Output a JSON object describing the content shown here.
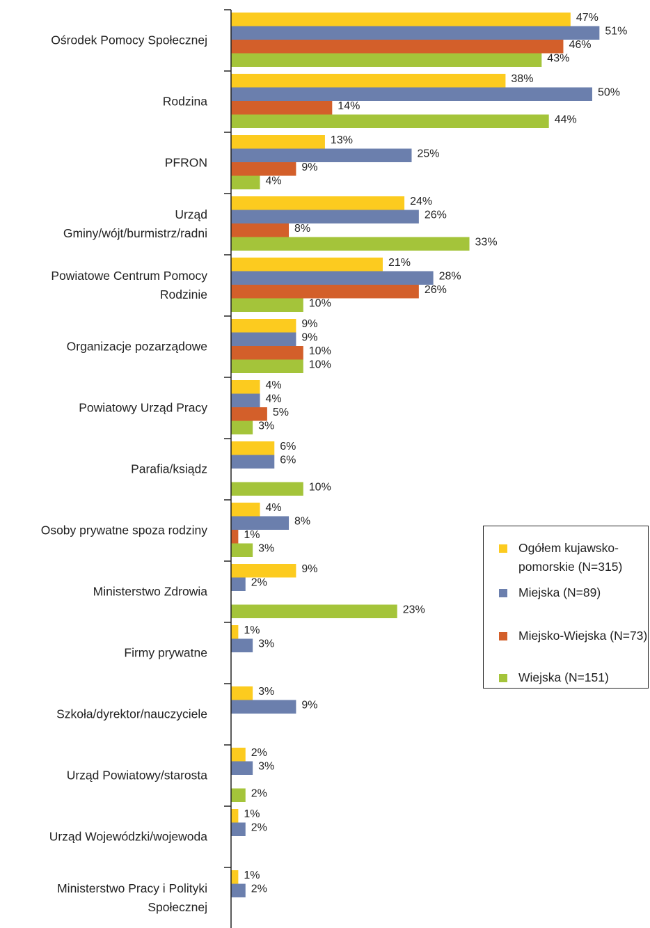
{
  "chart_data": {
    "type": "bar",
    "orientation": "horizontal",
    "categories": [
      "Ośrodek Pomocy Społecznej",
      "Rodzina",
      "PFRON",
      "Urząd\nGminy/wójt/burmistrz/radni",
      "Powiatowe Centrum Pomocy\nRodzinie",
      "Organizacje pozarządowe",
      "Powiatowy Urząd Pracy",
      "Parafia/ksiądz",
      "Osoby prywatne spoza rodziny",
      "Ministerstwo Zdrowia",
      "Firmy prywatne",
      "Szkoła/dyrektor/nauczyciele",
      "Urząd Powiatowy/starosta",
      "Urząd Wojewódzki/wojewoda",
      "Ministerstwo Pracy i Polityki\nSpołecznej"
    ],
    "xlim": [
      0,
      58
    ],
    "legend": "right",
    "series": [
      {
        "name": "Ogółem kujawsko-pomorskie (N=315)",
        "color": "#fccb1f",
        "values": [
          47,
          38,
          13,
          24,
          21,
          9,
          4,
          6,
          4,
          9,
          1,
          3,
          2,
          1,
          1
        ],
        "value_labels": [
          "47%",
          "38%",
          "13%",
          "24%",
          "21%",
          "9%",
          "4%",
          "6%",
          "4%",
          "9%",
          "1%",
          "3%",
          "2%",
          "1%",
          "1%"
        ]
      },
      {
        "name": "Miejska (N=89)",
        "color": "#6b7fad",
        "values": [
          51,
          50,
          25,
          26,
          28,
          9,
          4,
          6,
          8,
          2,
          3,
          9,
          3,
          2,
          2
        ],
        "value_labels": [
          "51%",
          "50%",
          "25%",
          "26%",
          "28%",
          "9%",
          "4%",
          "6%",
          "8%",
          "2%",
          "3%",
          "9%",
          "3%",
          "2%",
          "2%"
        ]
      },
      {
        "name": "Miejsko-Wiejska (N=73)",
        "color": "#d35f2a",
        "values": [
          46,
          14,
          9,
          8,
          26,
          10,
          5,
          null,
          1,
          null,
          null,
          null,
          null,
          null,
          null
        ],
        "value_labels": [
          "46%",
          "14%",
          "9%",
          "8%",
          "26%",
          "10%",
          "5%",
          null,
          "1%",
          null,
          null,
          null,
          null,
          null,
          null
        ]
      },
      {
        "name": "Wiejska (N=151)",
        "color": "#a4c43a",
        "values": [
          43,
          44,
          4,
          33,
          10,
          10,
          3,
          10,
          3,
          23,
          null,
          null,
          2,
          null,
          null
        ],
        "value_labels": [
          "43%",
          "44%",
          "4%",
          "33%",
          "10%",
          "10%",
          "3%",
          "10%",
          "3%",
          "23%",
          null,
          null,
          "2%",
          null,
          null
        ]
      }
    ]
  }
}
